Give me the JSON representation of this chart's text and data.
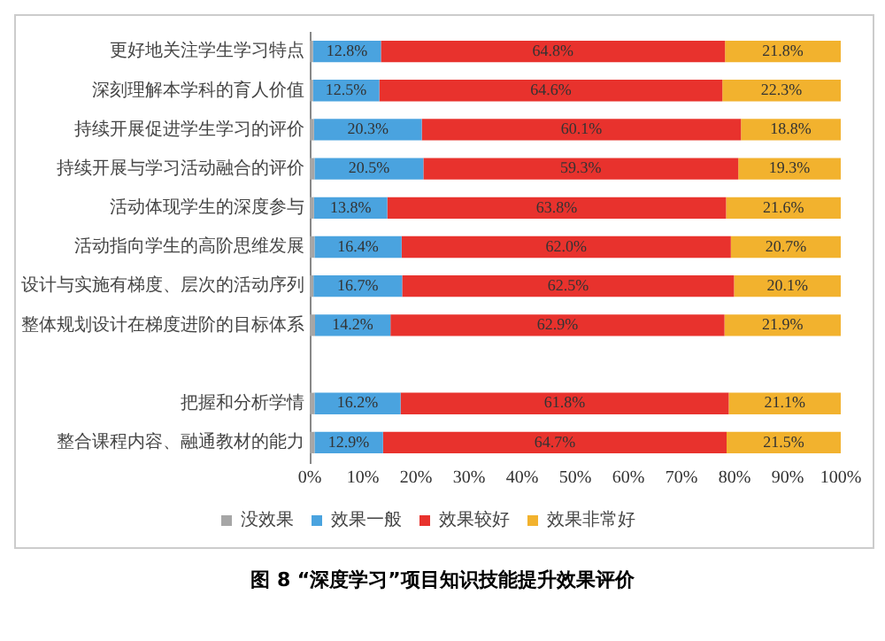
{
  "chart_data": {
    "type": "bar",
    "orientation": "horizontal",
    "stacked": true,
    "title": "图 8 “深度学习”项目知识技能提升效果评价",
    "categories": [
      "更好地关注学生学习特点",
      "深刻理解本学科的育人价值",
      "持续开展促进学生学习的评价",
      "持续开展与学习活动融合的评价",
      "活动体现学生的深度参与",
      "活动指向学生的高阶思维发展",
      "设计与实施有梯度、层次的活动序列",
      "整体规划设计在梯度进阶的目标体系",
      null,
      "把握和分析学情",
      "整合课程内容、融通教材的能力"
    ],
    "series": [
      {
        "name": "没效果",
        "color": "#a6a6a6",
        "values": [
          0.6,
          0.6,
          0.8,
          0.9,
          0.8,
          0.9,
          0.7,
          1.0,
          null,
          0.9,
          0.9
        ],
        "value_labels": [
          null,
          null,
          null,
          null,
          null,
          null,
          null,
          null,
          null,
          null,
          null
        ]
      },
      {
        "name": "效果一般",
        "color": "#4aa3df",
        "values": [
          12.8,
          12.5,
          20.3,
          20.5,
          13.8,
          16.4,
          16.7,
          14.2,
          null,
          16.2,
          12.9
        ],
        "value_labels": [
          "12.8%",
          "12.5%",
          "20.3%",
          "20.5%",
          "13.8%",
          "16.4%",
          "16.7%",
          "14.2%",
          null,
          "16.2%",
          "12.9%"
        ]
      },
      {
        "name": "效果较好",
        "color": "#e8322d",
        "values": [
          64.8,
          64.6,
          60.1,
          59.3,
          63.8,
          62.0,
          62.5,
          62.9,
          null,
          61.8,
          64.7
        ],
        "value_labels": [
          "64.8%",
          "64.6%",
          "60.1%",
          "59.3%",
          "63.8%",
          "62.0%",
          "62.5%",
          "62.9%",
          null,
          "61.8%",
          "64.7%"
        ]
      },
      {
        "name": "效果非常好",
        "color": "#f2b22e",
        "values": [
          21.8,
          22.3,
          18.8,
          19.3,
          21.6,
          20.7,
          20.1,
          21.9,
          null,
          21.1,
          21.5
        ],
        "value_labels": [
          "21.8%",
          "22.3%",
          "18.8%",
          "19.3%",
          "21.6%",
          "20.7%",
          "20.1%",
          "21.9%",
          null,
          "21.1%",
          "21.5%"
        ]
      }
    ],
    "xlim": [
      0,
      100
    ],
    "xticks": [
      {
        "value": 0,
        "label": "0%"
      },
      {
        "value": 10,
        "label": "10%"
      },
      {
        "value": 20,
        "label": "20%"
      },
      {
        "value": 30,
        "label": "30%"
      },
      {
        "value": 40,
        "label": "40%"
      },
      {
        "value": 50,
        "label": "50%"
      },
      {
        "value": 60,
        "label": "60%"
      },
      {
        "value": 70,
        "label": "70%"
      },
      {
        "value": 80,
        "label": "80%"
      },
      {
        "value": 90,
        "label": "90%"
      },
      {
        "value": 100,
        "label": "100%"
      }
    ],
    "legend": "bottom",
    "grid": false
  }
}
